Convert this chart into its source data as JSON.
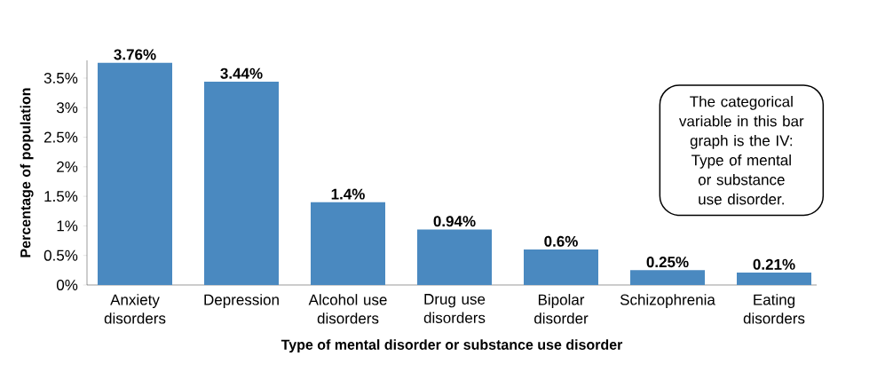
{
  "chart_data": {
    "type": "bar",
    "xlabel": "Type of mental disorder or substance use disorder",
    "ylabel": "Percentage of population",
    "categories": [
      "Anxiety disorders",
      "Depression",
      "Alcohol use disorders",
      "Drug use disorders",
      "Bipolar disorder",
      "Schizophrenia",
      "Eating disorders"
    ],
    "values": [
      3.76,
      3.44,
      1.4,
      0.94,
      0.6,
      0.25,
      0.21
    ],
    "value_labels": [
      "3.76%",
      "3.44%",
      "1.4%",
      "0.94%",
      "0.6%",
      "0.25%",
      "0.21%"
    ],
    "color": "#4a89c0",
    "ylim": [
      0,
      3.8
    ],
    "yticks": [
      {
        "value": 0,
        "label": "0%"
      },
      {
        "value": 0.5,
        "label": "0.5%"
      },
      {
        "value": 1,
        "label": "1%"
      },
      {
        "value": 1.5,
        "label": "1.5%"
      },
      {
        "value": 2,
        "label": "2%"
      },
      {
        "value": 2.5,
        "label": "2.5%"
      },
      {
        "value": 3,
        "label": "3%"
      },
      {
        "value": 3.5,
        "label": "3.5%"
      }
    ],
    "annotations": [
      "The categorical variable in this bar graph is the IV: Type of mental or substance use disorder."
    ]
  }
}
